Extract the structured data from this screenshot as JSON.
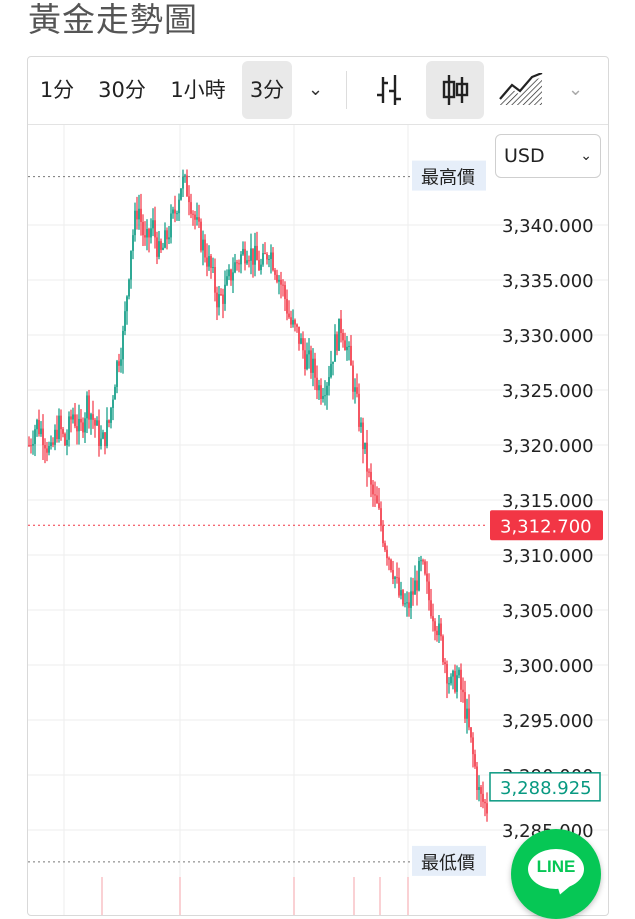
{
  "page": {
    "title": "黃金走勢圖"
  },
  "toolbar": {
    "intervals": [
      "1分",
      "30分",
      "1小時",
      "3分"
    ],
    "active_interval": "3分",
    "chart_styles": [
      "bar-chart-icon",
      "candlestick-icon",
      "area-chart-icon"
    ],
    "active_style": "candlestick-icon"
  },
  "currency": {
    "selected": "USD"
  },
  "markers": {
    "high_label": "最高價",
    "low_label": "最低價"
  },
  "price_badges": {
    "current": "3,312.700",
    "current_color": "#f23645",
    "secondary": "3,288.925",
    "secondary_color": "#089981"
  },
  "colors": {
    "up": "#089981",
    "down": "#f23645"
  },
  "chart_data": {
    "type": "candlestick",
    "y_ticks": [
      "3,340.000",
      "3,335.000",
      "3,330.000",
      "3,325.000",
      "3,320.000",
      "3,315.000",
      "3,310.000",
      "3,305.000",
      "3,300.000",
      "3,295.000",
      "3,290.000",
      "3,285.000"
    ],
    "ylim": [
      3283,
      3350
    ],
    "high": 3344.4,
    "low": 3282.1,
    "close_path": [
      3320,
      3322,
      3321,
      3319,
      3322,
      3320,
      3323,
      3321,
      3324,
      3322,
      3320,
      3322,
      3327,
      3330,
      3338,
      3342,
      3338,
      3340,
      3337,
      3339,
      3341,
      3344,
      3343,
      3340,
      3338,
      3336,
      3333,
      3334,
      3336,
      3337,
      3338,
      3337,
      3336,
      3338,
      3336,
      3334,
      3331,
      3330,
      3328,
      3327,
      3325,
      3326,
      3329,
      3331,
      3328,
      3324,
      3320,
      3316,
      3314,
      3311,
      3309,
      3306,
      3305,
      3307,
      3309,
      3306,
      3304,
      3301,
      3298,
      3299,
      3296,
      3292,
      3288,
      3287
    ]
  }
}
